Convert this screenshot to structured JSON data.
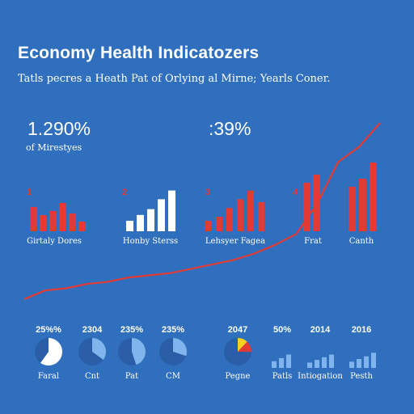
{
  "header": {
    "title": "Economy Health Indicatozers",
    "subtitle": "Tatls pecres a Heath Pat of Orlying al Mirne; Yearls Coner."
  },
  "stats": [
    {
      "value": "1.290%",
      "caption": "of Mirestyes"
    },
    {
      "value": ":39%",
      "caption": ""
    }
  ],
  "colors": {
    "background": "#2f6fbe",
    "red": "#e23a35",
    "white": "#ffffff",
    "light_blue": "#7fb4ec"
  },
  "chart_data": [
    {
      "type": "line",
      "title": "",
      "series": [
        {
          "values": [
            0,
            4,
            5,
            7,
            8,
            10,
            11,
            12,
            14,
            16,
            18,
            21,
            25,
            30,
            44,
            63,
            70,
            81
          ]
        }
      ],
      "color": "#e23a35"
    },
    {
      "type": "bar",
      "index": "1",
      "label": "Girtaly Dores",
      "color": "#e23a35",
      "values": [
        30,
        20,
        25,
        35,
        22,
        12
      ]
    },
    {
      "type": "bar",
      "index": "2",
      "label": "Honby Sterss",
      "color": "#ffffff",
      "values": [
        18,
        28,
        38,
        55,
        70
      ]
    },
    {
      "type": "bar",
      "index": "3",
      "label": "Lehsyer Fagea",
      "color": "#e23a35",
      "values": [
        18,
        25,
        40,
        55,
        70,
        50
      ]
    },
    {
      "type": "bar",
      "index": "4",
      "label": "Frat",
      "color": "#e23a35",
      "values": [
        60,
        70
      ]
    },
    {
      "type": "bar",
      "index": "",
      "label": "Canth",
      "color": "#e23a35",
      "values": [
        55,
        65,
        85
      ]
    },
    {
      "type": "pie",
      "value_label": "25%%",
      "label": "Faral",
      "values": [
        0.6,
        0.4
      ],
      "colors": [
        "#ffffff",
        "#2a5fa8"
      ]
    },
    {
      "type": "pie",
      "value_label": "2304",
      "label": "Cnt",
      "values": [
        0.35,
        0.65
      ],
      "colors": [
        "#7fb4ec",
        "#2a5fa8"
      ]
    },
    {
      "type": "pie",
      "value_label": "235%",
      "label": "Pat",
      "values": [
        0.45,
        0.55
      ],
      "colors": [
        "#7fb4ec",
        "#2a5fa8"
      ]
    },
    {
      "type": "pie",
      "value_label": "235%",
      "label": "CM",
      "values": [
        0.3,
        0.7
      ],
      "colors": [
        "#7fb4ec",
        "#2a5fa8"
      ]
    },
    {
      "type": "pie",
      "value_label": "2047",
      "label": "Pegne",
      "values": [
        0.12,
        0.13,
        0.75
      ],
      "colors": [
        "#f4d21f",
        "#e23a35",
        "#2a5fa8"
      ]
    },
    {
      "type": "bar",
      "value_label": "50%",
      "label": "Patls",
      "color": "#7fb4ec",
      "values": [
        15,
        22,
        30
      ]
    },
    {
      "type": "bar",
      "value_label": "2014",
      "label": "Intiogation",
      "color": "#7fb4ec",
      "values": [
        12,
        18,
        24,
        30
      ]
    },
    {
      "type": "bar",
      "value_label": "2016",
      "label": "Pesth",
      "color": "#7fb4ec",
      "values": [
        14,
        20,
        26,
        34
      ]
    }
  ]
}
